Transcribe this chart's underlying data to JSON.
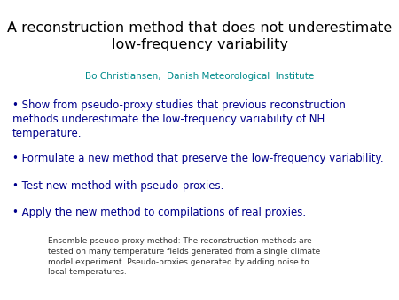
{
  "title_line1": "A reconstruction method that does not underestimate",
  "title_line2": "low-frequency variability",
  "author": "Bo Christiansen,  Danish Meteorological  Institute",
  "bullet1": "• Show from pseudo-proxy studies that previous reconstruction\nmethods underestimate the low-frequency variability of NH\ntemperature.",
  "bullet2": "• Formulate a new method that preserve the low-frequency variability.",
  "bullet3": "• Test new method with pseudo-proxies.",
  "bullet4": "• Apply the new method to compilations of real proxies.",
  "footnote": "Ensemble pseudo-proxy method: The reconstruction methods are\ntested on many temperature fields generated from a single climate\nmodel experiment. Pseudo-proxies generated by adding noise to\nlocal temperatures.",
  "title_color": "#000000",
  "author_color": "#008B8B",
  "bullet_color": "#00008B",
  "footnote_color": "#333333",
  "background_color": "#ffffff",
  "title_fontsize": 11.5,
  "author_fontsize": 7.5,
  "bullet_fontsize": 8.5,
  "footnote_fontsize": 6.5
}
